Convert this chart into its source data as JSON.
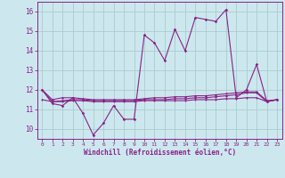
{
  "bg_color": "#cce8ee",
  "grid_color": "#aacccc",
  "line_color": "#882288",
  "xlabel": "Windchill (Refroidissement éolien,°C)",
  "xlim": [
    -0.5,
    23.5
  ],
  "ylim": [
    9.5,
    16.5
  ],
  "yticks": [
    10,
    11,
    12,
    13,
    14,
    15,
    16
  ],
  "xticks": [
    0,
    1,
    2,
    3,
    4,
    5,
    6,
    7,
    8,
    9,
    10,
    11,
    12,
    13,
    14,
    15,
    16,
    17,
    18,
    19,
    20,
    21,
    22,
    23
  ],
  "main_y": [
    12.0,
    11.3,
    11.2,
    11.6,
    10.8,
    9.7,
    10.3,
    11.2,
    10.5,
    10.5,
    14.8,
    14.4,
    13.5,
    15.1,
    14.0,
    15.7,
    15.6,
    15.5,
    16.1,
    11.6,
    12.0,
    13.3,
    11.4,
    11.5
  ],
  "line2_y": [
    12.0,
    11.5,
    11.6,
    11.6,
    11.55,
    11.5,
    11.5,
    11.5,
    11.5,
    11.5,
    11.55,
    11.6,
    11.6,
    11.65,
    11.65,
    11.7,
    11.7,
    11.75,
    11.8,
    11.85,
    11.9,
    11.9,
    11.45,
    11.5
  ],
  "line3_y": [
    12.0,
    11.4,
    11.45,
    11.5,
    11.5,
    11.45,
    11.45,
    11.45,
    11.45,
    11.45,
    11.5,
    11.5,
    11.5,
    11.55,
    11.55,
    11.6,
    11.6,
    11.65,
    11.7,
    11.75,
    11.85,
    11.85,
    11.4,
    11.5
  ],
  "line4_y": [
    11.5,
    11.4,
    11.4,
    11.45,
    11.45,
    11.4,
    11.4,
    11.4,
    11.4,
    11.4,
    11.45,
    11.45,
    11.45,
    11.45,
    11.45,
    11.5,
    11.5,
    11.5,
    11.55,
    11.55,
    11.6,
    11.6,
    11.4,
    11.5
  ]
}
